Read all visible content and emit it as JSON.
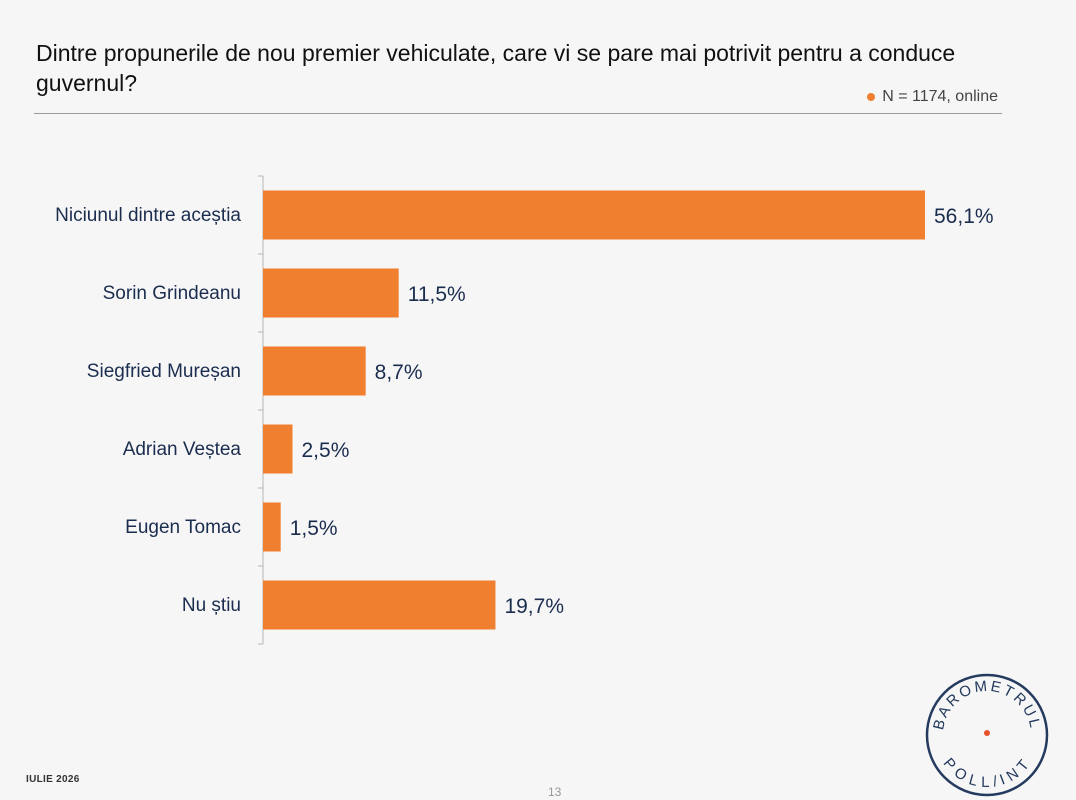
{
  "header": {
    "title": "Dintre propunerile de nou premier vehiculate, care vi se pare mai potrivit pentru a conduce guvernul?",
    "sample_note": "N = 1174, online"
  },
  "colors": {
    "bar": "#f07f2f",
    "label": "#1b2d4f",
    "accent_dot": "#f07f2f",
    "logo": "#243a5e",
    "logo_dot": "#e8502a"
  },
  "chart_data": {
    "type": "bar",
    "orientation": "horizontal",
    "categories": [
      "Niciunul dintre aceștia",
      "Sorin Grindeanu",
      "Siegfried Mureșan",
      "Adrian Veștea",
      "Eugen Tomac",
      "Nu știu"
    ],
    "values": [
      56.1,
      11.5,
      8.7,
      2.5,
      1.5,
      19.7
    ],
    "value_labels": [
      "56,1%",
      "11,5%",
      "8,7%",
      "2,5%",
      "1,5%",
      "19,7%"
    ],
    "unit": "%",
    "xlim": [
      0,
      56.1
    ],
    "title": "Dintre propunerile de nou premier vehiculate, care vi se pare mai potrivit pentru a conduce guvernul?",
    "xlabel": "",
    "ylabel": "",
    "grid": false,
    "legend": "none"
  },
  "footer": {
    "date": "IULIE 2026",
    "page": "13"
  },
  "logo": {
    "top_text": "BAROMETRUL",
    "bottom_text": "POLL/INT"
  }
}
